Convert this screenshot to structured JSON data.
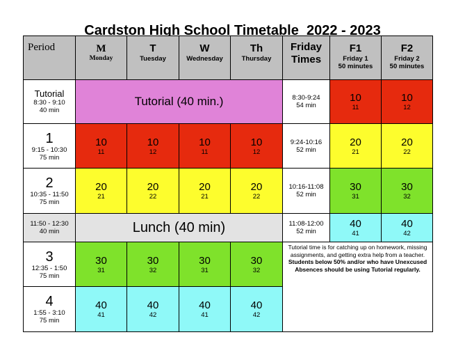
{
  "title": "Cardston High School Timetable  2022 - 2023",
  "header": {
    "period": "Period",
    "days": [
      {
        "letter": "M",
        "name": "Monday"
      },
      {
        "letter": "T",
        "name": "Tuesday"
      },
      {
        "letter": "W",
        "name": "Wednesday"
      },
      {
        "letter": "Th",
        "name": "Thursday"
      }
    ],
    "friday_times": "Friday Times",
    "f1": {
      "letter": "F1",
      "line1": "Friday 1",
      "line2": "50 minutes"
    },
    "f2": {
      "letter": "F2",
      "line1": "Friday 2",
      "line2": "50 minutes"
    }
  },
  "rows": {
    "tutorial": {
      "label": "Tutorial",
      "time": "8:30 - 9:10",
      "duration": "40 min",
      "block": "Tutorial (40 min.)",
      "fri_time": "8:30-9:24",
      "fri_dur": "54 min",
      "f1": {
        "main": "10",
        "sub": "11"
      },
      "f2": {
        "main": "10",
        "sub": "12"
      }
    },
    "p1": {
      "label": "1",
      "time": "9:15 - 10:30",
      "duration": "75 min",
      "cells": [
        {
          "main": "10",
          "sub": "11"
        },
        {
          "main": "10",
          "sub": "12"
        },
        {
          "main": "10",
          "sub": "11"
        },
        {
          "main": "10",
          "sub": "12"
        }
      ],
      "fri_time": "9:24-10:16",
      "fri_dur": "52 min",
      "f1": {
        "main": "20",
        "sub": "21"
      },
      "f2": {
        "main": "20",
        "sub": "22"
      }
    },
    "p2": {
      "label": "2",
      "time": "10:35 - 11:50",
      "duration": "75 min",
      "cells": [
        {
          "main": "20",
          "sub": "21"
        },
        {
          "main": "20",
          "sub": "22"
        },
        {
          "main": "20",
          "sub": "21"
        },
        {
          "main": "20",
          "sub": "22"
        }
      ],
      "fri_time": "10:16-11:08",
      "fri_dur": "52 min",
      "f1": {
        "main": "30",
        "sub": "31"
      },
      "f2": {
        "main": "30",
        "sub": "32"
      }
    },
    "lunch": {
      "time": "11:50 - 12:30",
      "duration": "40 min",
      "block": "Lunch (40 min)",
      "fri_time": "11:08-12:00",
      "fri_dur": "52 min",
      "f1": {
        "main": "40",
        "sub": "41"
      },
      "f2": {
        "main": "40",
        "sub": "42"
      }
    },
    "p3": {
      "label": "3",
      "time": "12:35 - 1:50",
      "duration": "75 min",
      "cells": [
        {
          "main": "30",
          "sub": "31"
        },
        {
          "main": "30",
          "sub": "32"
        },
        {
          "main": "30",
          "sub": "31"
        },
        {
          "main": "30",
          "sub": "32"
        }
      ]
    },
    "p4": {
      "label": "4",
      "time": "1:55 - 3:10",
      "duration": "75 min",
      "cells": [
        {
          "main": "40",
          "sub": "41"
        },
        {
          "main": "40",
          "sub": "42"
        },
        {
          "main": "40",
          "sub": "41"
        },
        {
          "main": "40",
          "sub": "42"
        }
      ]
    }
  },
  "note": {
    "normal": "Tutorial time is for catching up on homework, missing assignments, and getting extra help from a teacher.",
    "bold": "Students below 50% and/or who have Unexcused Absences should be using Tutorial regularly."
  },
  "colors": {
    "header": "#c0c0c0",
    "red": "#e62a0e",
    "yellow": "#fdfd2d",
    "green": "#7fe22b",
    "cyan": "#8ff9f8",
    "pink": "#e083d8",
    "lunch": "#e3e3e3"
  }
}
